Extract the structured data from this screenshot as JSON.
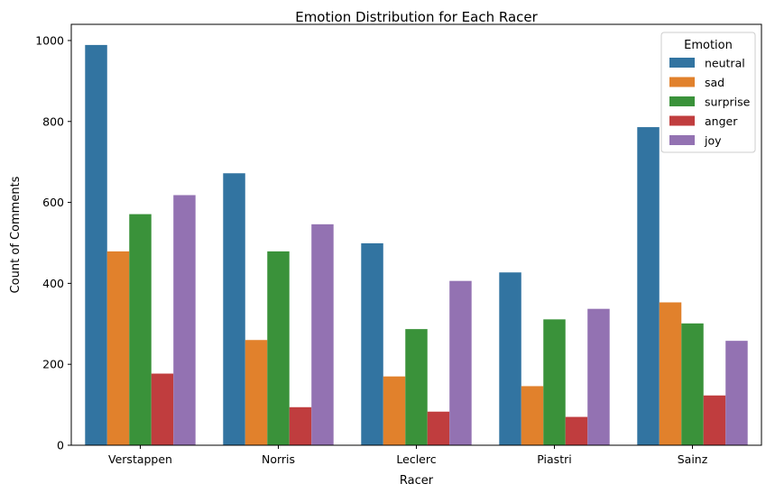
{
  "chart_data": {
    "type": "bar",
    "title": "Emotion Distribution for Each Racer",
    "xlabel": "Racer",
    "ylabel": "Count of Comments",
    "categories": [
      "Verstappen",
      "Norris",
      "Leclerc",
      "Piastri",
      "Sainz"
    ],
    "series": [
      {
        "name": "neutral",
        "color": "#3274a1",
        "values": [
          989,
          672,
          499,
          427,
          786
        ]
      },
      {
        "name": "sad",
        "color": "#e1812c",
        "values": [
          479,
          260,
          170,
          146,
          353
        ]
      },
      {
        "name": "surprise",
        "color": "#3a923a",
        "values": [
          571,
          479,
          287,
          311,
          301
        ]
      },
      {
        "name": "anger",
        "color": "#c03d3e",
        "values": [
          177,
          94,
          83,
          70,
          123
        ]
      },
      {
        "name": "joy",
        "color": "#9372b2",
        "values": [
          618,
          546,
          406,
          337,
          258
        ]
      }
    ],
    "ylim": [
      0,
      1040
    ],
    "yticks": [
      0,
      200,
      400,
      600,
      800,
      1000
    ],
    "grid": false,
    "legend": {
      "title": "Emotion",
      "placement": "top-right"
    }
  }
}
